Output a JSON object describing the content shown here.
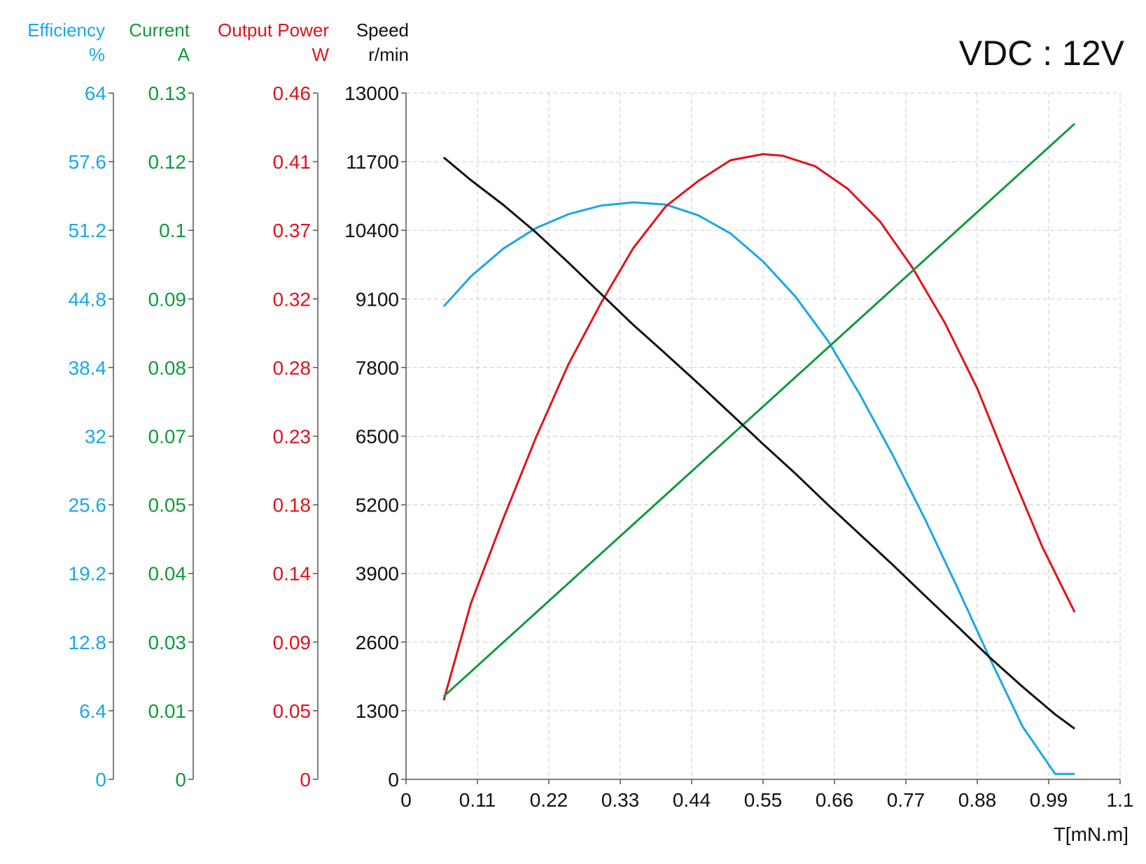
{
  "supply_label": "VDC : 12V",
  "colors": {
    "efficiency": "#1aa7e8",
    "current": "#109a3c",
    "power": "#e2121b",
    "speed": "#111111",
    "grid": "#c9c9c9",
    "axis": "#555555"
  },
  "chart_data": {
    "type": "line",
    "title": "",
    "xlabel": "T[mN.m]",
    "x_ticks": [
      "0",
      "0.11",
      "0.22",
      "0.33",
      "0.44",
      "0.55",
      "0.66",
      "0.77",
      "0.88",
      "0.99",
      "1.1"
    ],
    "xlim": [
      0,
      1.1
    ],
    "grid": true,
    "axes": [
      {
        "key": "efficiency",
        "name": "Efficiency",
        "unit": "%",
        "ylim": [
          0,
          64
        ],
        "ticks": [
          "0",
          "6.4",
          "12.8",
          "19.2",
          "25.6",
          "32",
          "38.4",
          "44.8",
          "51.2",
          "57.6",
          "64"
        ]
      },
      {
        "key": "current",
        "name": "Current",
        "unit": "A",
        "ylim": [
          0,
          0.13
        ],
        "ticks": [
          "0",
          "0.01",
          "0.03",
          "0.04",
          "0.05",
          "0.07",
          "0.08",
          "0.09",
          "0.1",
          "0.12",
          "0.13"
        ]
      },
      {
        "key": "power",
        "name": "Output Power",
        "unit": "W",
        "ylim": [
          0,
          0.46
        ],
        "ticks": [
          "0",
          "0.05",
          "0.09",
          "0.14",
          "0.18",
          "0.23",
          "0.28",
          "0.32",
          "0.37",
          "0.41",
          "0.46"
        ]
      },
      {
        "key": "speed",
        "name": "Speed",
        "unit": "r/min",
        "ylim": [
          0,
          13000
        ],
        "ticks": [
          "0",
          "1300",
          "2600",
          "3900",
          "5200",
          "6500",
          "7800",
          "9100",
          "10400",
          "11700",
          "13000"
        ]
      }
    ],
    "series": [
      {
        "key": "efficiency",
        "x": [
          0.058,
          0.1,
          0.15,
          0.2,
          0.25,
          0.3,
          0.35,
          0.4,
          0.45,
          0.5,
          0.55,
          0.6,
          0.65,
          0.7,
          0.75,
          0.8,
          0.85,
          0.9,
          0.95,
          1.0,
          1.03
        ],
        "y": [
          44.1,
          46.9,
          49.5,
          51.4,
          52.7,
          53.5,
          53.8,
          53.6,
          52.6,
          50.9,
          48.3,
          45.0,
          40.9,
          35.8,
          30.2,
          24.2,
          17.8,
          11.2,
          4.9,
          0.5,
          0.5
        ]
      },
      {
        "key": "current",
        "x": [
          0.058,
          1.03
        ],
        "y": [
          0.0157,
          0.1242
        ]
      },
      {
        "key": "power",
        "x": [
          0.058,
          0.1,
          0.15,
          0.2,
          0.25,
          0.3,
          0.35,
          0.4,
          0.45,
          0.5,
          0.55,
          0.58,
          0.63,
          0.68,
          0.73,
          0.78,
          0.83,
          0.88,
          0.93,
          0.98,
          1.03
        ],
        "y": [
          0.053,
          0.118,
          0.175,
          0.229,
          0.278,
          0.319,
          0.356,
          0.384,
          0.401,
          0.415,
          0.419,
          0.418,
          0.411,
          0.396,
          0.374,
          0.343,
          0.306,
          0.262,
          0.208,
          0.156,
          0.112
        ]
      },
      {
        "key": "speed",
        "x": [
          0.058,
          0.1,
          0.15,
          0.2,
          0.25,
          0.3,
          0.35,
          0.4,
          0.45,
          0.5,
          0.55,
          0.6,
          0.65,
          0.7,
          0.75,
          0.8,
          0.85,
          0.9,
          0.95,
          1.0,
          1.03
        ],
        "y": [
          11780,
          11350,
          10880,
          10360,
          9790,
          9200,
          8610,
          8060,
          7500,
          6930,
          6350,
          5790,
          5200,
          4630,
          4060,
          3470,
          2890,
          2300,
          1750,
          1230,
          960
        ]
      }
    ]
  }
}
